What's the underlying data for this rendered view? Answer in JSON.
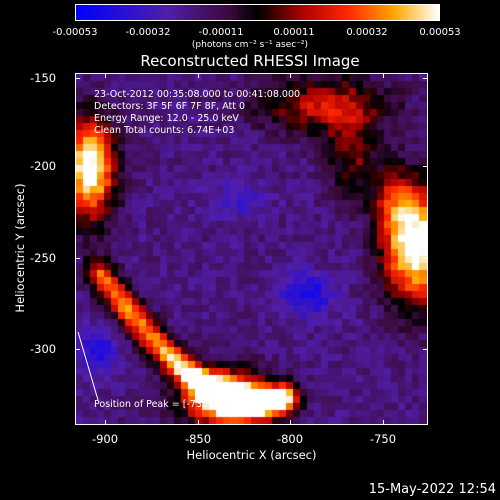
{
  "colorbar": {
    "ticks": [
      "-0.00053",
      "-0.00032",
      "-0.00011",
      "0.00011",
      "0.00032",
      "0.00053"
    ],
    "units": "(photons cm⁻² s⁻¹ asec⁻²)"
  },
  "title": "Reconstructed RHESSI Image",
  "annotations": {
    "time": "23-Oct-2012 00:35:08.000 to 00:41:08.000",
    "detectors": "Detectors: 3F 5F 6F 7F 8F, Att 0",
    "energy": "Energy Range: 12.0 - 25.0 keV",
    "clean": "Clean    Total counts: 6.74E+03",
    "peak": "Position of Peak = [-733,-248]"
  },
  "axes": {
    "xlabel": "Heliocentric X (arcsec)",
    "ylabel": "Heliocentric Y (arcsec)",
    "xticks": [
      "-900",
      "-850",
      "-800",
      "-750"
    ],
    "yticks": [
      "-150",
      "-200",
      "-250",
      "-300"
    ]
  },
  "timestamp": "15-May-2022 12:54"
}
